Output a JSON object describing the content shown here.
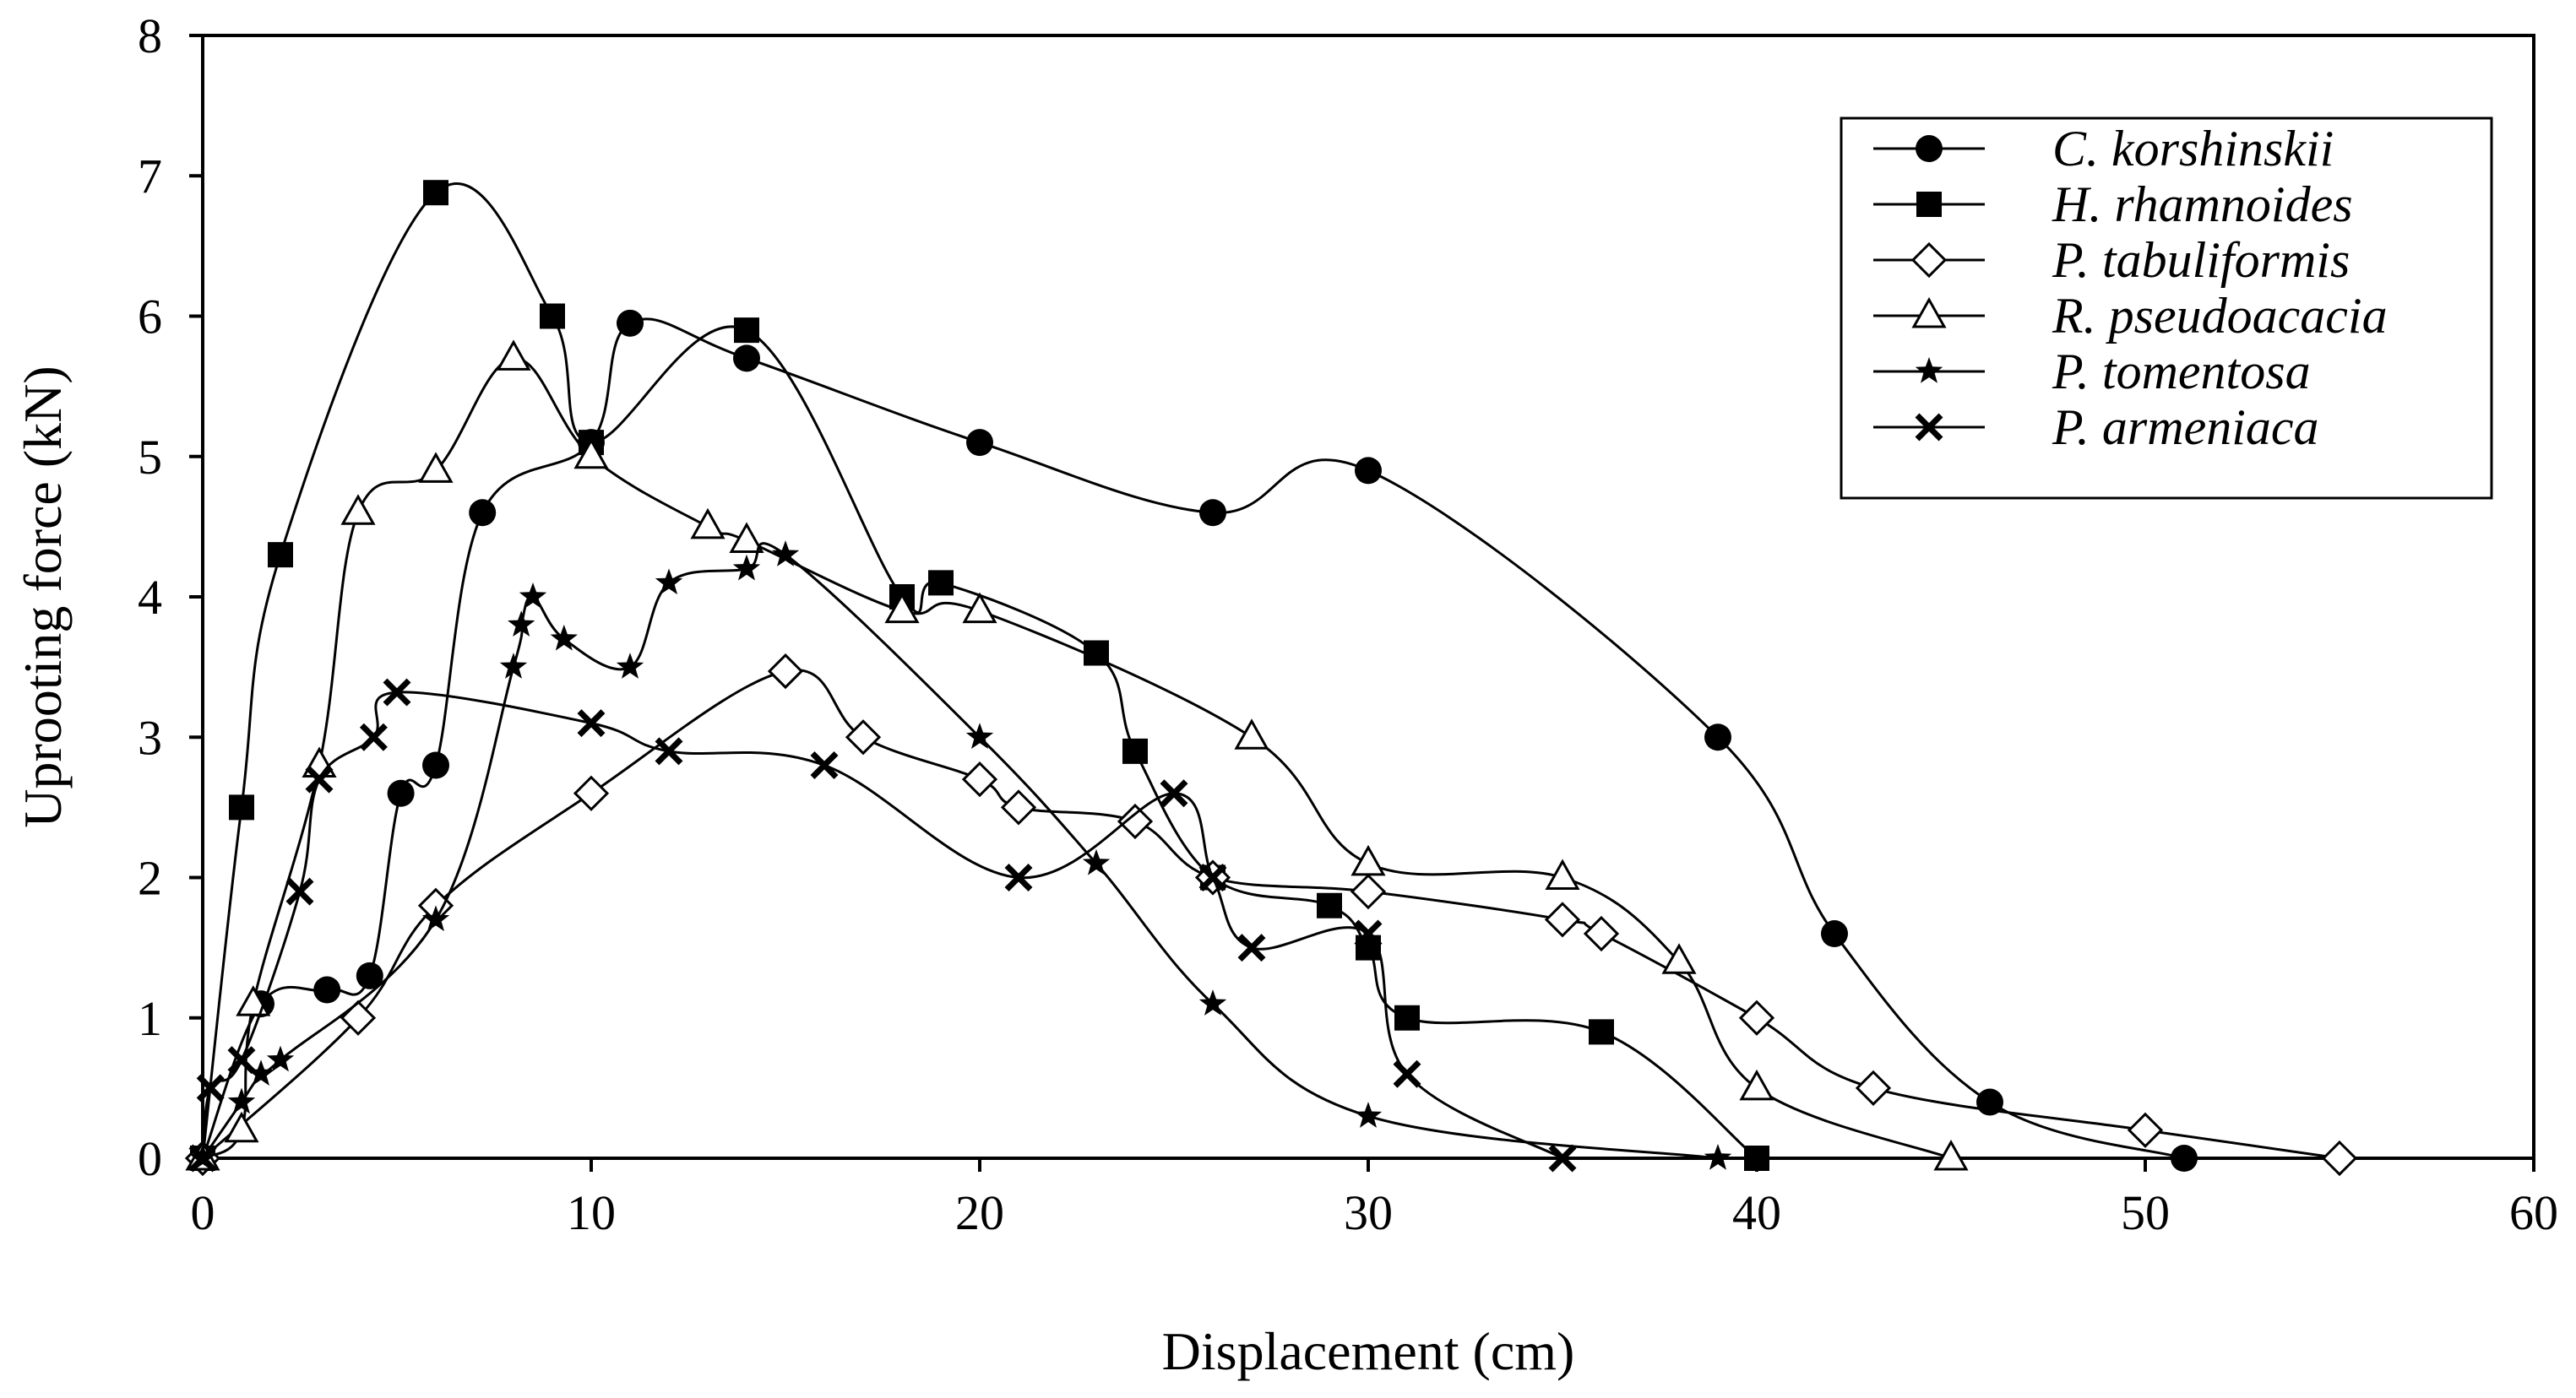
{
  "chart_data": {
    "type": "line",
    "title": "",
    "xlabel": "Displacement (cm)",
    "ylabel": "Uprooting force (kN)",
    "xlim": [
      0,
      60
    ],
    "ylim": [
      0,
      8
    ],
    "xticks": [
      0,
      10,
      20,
      30,
      40,
      50,
      60
    ],
    "yticks": [
      0,
      1,
      2,
      3,
      4,
      5,
      6,
      7,
      8
    ],
    "grid": false,
    "legend_position": "top-right",
    "series": [
      {
        "name": "C. korshinskii",
        "marker": "filled-circle",
        "x": [
          0,
          1.5,
          3.2,
          4.3,
          5.1,
          6,
          7.2,
          10,
          11,
          14,
          20,
          26,
          30,
          39,
          42,
          46,
          51
        ],
        "y": [
          0,
          1.1,
          1.2,
          1.3,
          2.6,
          2.8,
          4.6,
          5.1,
          5.95,
          5.7,
          5.1,
          4.6,
          4.9,
          3.0,
          1.6,
          0.4,
          0
        ]
      },
      {
        "name": "H. rhamnoides",
        "marker": "filled-square",
        "x": [
          0,
          1,
          2,
          6,
          9,
          10,
          14,
          18,
          19,
          23,
          24,
          26,
          29,
          30,
          31,
          36,
          40
        ],
        "y": [
          0,
          2.5,
          4.3,
          6.88,
          6.0,
          5.1,
          5.9,
          4.0,
          4.1,
          3.6,
          2.9,
          2.0,
          1.8,
          1.5,
          1.0,
          0.9,
          0
        ]
      },
      {
        "name": "P. tabuliformis",
        "marker": "open-diamond",
        "x": [
          0,
          4,
          6,
          10,
          15,
          17,
          20,
          21,
          24,
          26,
          30,
          35,
          36,
          40,
          43,
          50,
          55
        ],
        "y": [
          0,
          1.0,
          1.8,
          2.6,
          3.47,
          3.0,
          2.7,
          2.5,
          2.4,
          2.0,
          1.9,
          1.7,
          1.6,
          1.0,
          0.5,
          0.2,
          0
        ]
      },
      {
        "name": "R. pseudoacacia",
        "marker": "open-triangle",
        "x": [
          0,
          1,
          1.3,
          3,
          4,
          6,
          8,
          10,
          13,
          14,
          18,
          20,
          27,
          30,
          35,
          38,
          40,
          45
        ],
        "y": [
          0,
          0.2,
          1.1,
          2.8,
          4.6,
          4.9,
          5.7,
          5.0,
          4.5,
          4.4,
          3.9,
          3.9,
          3.0,
          2.1,
          2.0,
          1.4,
          0.5,
          0
        ]
      },
      {
        "name": "P. tomentosa",
        "marker": "filled-star",
        "x": [
          0,
          1,
          1.5,
          2,
          6,
          8,
          8.2,
          8.5,
          9.3,
          11,
          12,
          14,
          15,
          20,
          23,
          26,
          30,
          39
        ],
        "y": [
          0,
          0.4,
          0.6,
          0.7,
          1.7,
          3.5,
          3.8,
          4.0,
          3.7,
          3.5,
          4.1,
          4.2,
          4.3,
          3.0,
          2.1,
          1.1,
          0.3,
          0
        ]
      },
      {
        "name": "P. armeniaca",
        "marker": "x-mark",
        "x": [
          0,
          0.2,
          1,
          2.5,
          3,
          4.4,
          5,
          10,
          12,
          16,
          21,
          25,
          26,
          27,
          30,
          31,
          35
        ],
        "y": [
          0,
          0.5,
          0.7,
          1.9,
          2.7,
          3.0,
          3.32,
          3.1,
          2.9,
          2.8,
          2.0,
          2.6,
          2.0,
          1.5,
          1.6,
          0.6,
          0
        ]
      }
    ]
  }
}
